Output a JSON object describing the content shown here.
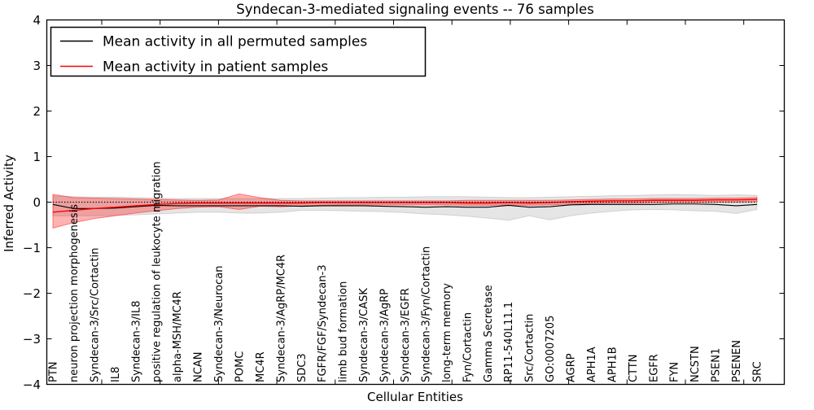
{
  "chart_data": {
    "type": "line",
    "title": "Syndecan-3-mediated signaling events -- 76 samples",
    "xlabel": "Cellular Entities",
    "ylabel": "Inferred Activity",
    "ylim": [
      -4,
      4
    ],
    "ytick_values": [
      4,
      3,
      2,
      1,
      0,
      -1,
      -2,
      -3,
      -4
    ],
    "ytick_labels": [
      "4",
      "3",
      "2",
      "1",
      "0",
      "−1",
      "−2",
      "−3",
      "−4"
    ],
    "grid": false,
    "legend_position": "upper left",
    "zero_line": 0,
    "categories": [
      "PTN",
      "neuron projection morphogenesis",
      "Syndecan-3/Src/Cortactin",
      "IL8",
      "Syndecan-3/IL8",
      "positive regulation of leukocyte migration",
      "alpha-MSH/MC4R",
      "NCAN",
      "Syndecan-3/Neurocan",
      "POMC",
      "MC4R",
      "Syndecan-3/AgRP/MC4R",
      "SDC3",
      "FGFR/FGF/Syndecan-3",
      "limb bud formation",
      "Syndecan-3/CASK",
      "Syndecan-3/AgRP",
      "Syndecan-3/EGFR",
      "Syndecan-3/Fyn/Cortactin",
      "long-term memory",
      "Fyn/Cortactin",
      "Gamma Secretase",
      "RP11-540L11.1",
      "Src/Cortactin",
      "GO:0007205",
      "AGRP",
      "APH1A",
      "APH1B",
      "CTTN",
      "EGFR",
      "FYN",
      "NCSTN",
      "PSEN1",
      "PSENEN",
      "SRC"
    ],
    "series": [
      {
        "name": "Mean activity in all permuted samples",
        "color": "#000000",
        "values": [
          -0.05,
          -0.14,
          -0.14,
          -0.13,
          -0.1,
          -0.07,
          -0.08,
          -0.08,
          -0.08,
          -0.08,
          -0.08,
          -0.08,
          -0.09,
          -0.08,
          -0.08,
          -0.08,
          -0.09,
          -0.1,
          -0.11,
          -0.1,
          -0.11,
          -0.11,
          -0.07,
          -0.11,
          -0.1,
          -0.06,
          -0.05,
          -0.05,
          -0.05,
          -0.05,
          -0.04,
          -0.04,
          -0.05,
          -0.08,
          -0.05
        ]
      },
      {
        "name": "Mean activity in patient samples",
        "color": "#ff0000",
        "values": [
          -0.22,
          -0.18,
          -0.14,
          -0.11,
          -0.08,
          -0.05,
          -0.03,
          -0.02,
          -0.02,
          -0.02,
          -0.02,
          -0.02,
          -0.02,
          -0.01,
          -0.01,
          -0.01,
          -0.01,
          -0.01,
          -0.01,
          -0.01,
          -0.02,
          -0.02,
          -0.01,
          -0.02,
          -0.01,
          0.01,
          0.02,
          0.03,
          0.03,
          0.04,
          0.04,
          0.04,
          0.05,
          0.05,
          0.06
        ]
      }
    ],
    "bands": [
      {
        "name": "permuted-samples-std-band",
        "fill": "rgba(0,0,0,0.10)",
        "edge": "rgba(0,0,0,0.13)",
        "upper": [
          0.14,
          0.12,
          0.11,
          0.11,
          0.1,
          0.09,
          0.08,
          0.08,
          0.08,
          0.08,
          0.08,
          0.08,
          0.08,
          0.09,
          0.1,
          0.1,
          0.11,
          0.11,
          0.12,
          0.12,
          0.12,
          0.11,
          0.1,
          0.1,
          0.11,
          0.12,
          0.13,
          0.14,
          0.15,
          0.16,
          0.17,
          0.16,
          0.15,
          0.16,
          0.15
        ],
        "lower": [
          -0.3,
          -0.3,
          -0.3,
          -0.29,
          -0.28,
          -0.26,
          -0.24,
          -0.22,
          -0.22,
          -0.24,
          -0.24,
          -0.22,
          -0.18,
          -0.18,
          -0.19,
          -0.2,
          -0.21,
          -0.23,
          -0.26,
          -0.28,
          -0.31,
          -0.35,
          -0.4,
          -0.3,
          -0.39,
          -0.3,
          -0.24,
          -0.2,
          -0.17,
          -0.16,
          -0.17,
          -0.19,
          -0.2,
          -0.25,
          -0.16
        ]
      },
      {
        "name": "patient-samples-std-band",
        "fill": "rgba(255,0,0,0.30)",
        "edge": "rgba(255,0,0,0.45)",
        "upper": [
          0.17,
          0.1,
          0.09,
          0.08,
          0.07,
          0.06,
          0.05,
          0.04,
          0.05,
          0.18,
          0.1,
          0.04,
          0.03,
          0.03,
          0.03,
          0.03,
          0.03,
          0.03,
          0.03,
          0.03,
          0.04,
          0.04,
          0.04,
          0.04,
          0.04,
          0.05,
          0.06,
          0.07,
          0.07,
          0.08,
          0.08,
          0.08,
          0.09,
          0.09,
          0.1
        ],
        "lower": [
          -0.57,
          -0.45,
          -0.36,
          -0.3,
          -0.24,
          -0.19,
          -0.14,
          -0.11,
          -0.1,
          -0.16,
          -0.09,
          -0.1,
          -0.08,
          -0.07,
          -0.06,
          -0.06,
          -0.06,
          -0.06,
          -0.06,
          -0.06,
          -0.07,
          -0.07,
          -0.06,
          -0.07,
          -0.06,
          -0.04,
          -0.03,
          -0.02,
          -0.02,
          -0.01,
          -0.01,
          -0.01,
          0.0,
          0.0,
          0.01
        ]
      }
    ]
  }
}
